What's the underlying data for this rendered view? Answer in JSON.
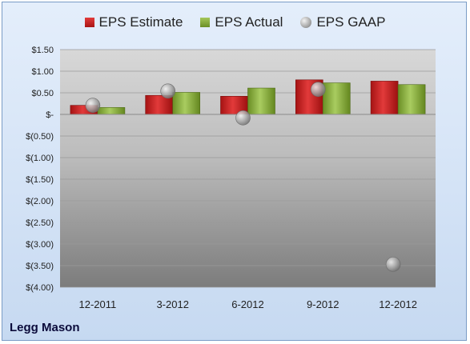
{
  "company": "Legg Mason",
  "legend": {
    "estimate": "EPS Estimate",
    "actual": "EPS Actual",
    "gaap": "EPS GAAP"
  },
  "chart_data": {
    "type": "bar",
    "title": "",
    "xlabel": "",
    "ylabel": "",
    "categories": [
      "12-2011",
      "3-2012",
      "6-2012",
      "9-2012",
      "12-2012"
    ],
    "series": [
      {
        "name": "EPS Estimate",
        "kind": "bar",
        "color": "#c0201f",
        "values": [
          0.21,
          0.44,
          0.42,
          0.8,
          0.77
        ]
      },
      {
        "name": "EPS Actual",
        "kind": "bar",
        "color": "#86ad3a",
        "values": [
          0.16,
          0.51,
          0.61,
          0.73,
          0.69
        ]
      },
      {
        "name": "EPS GAAP",
        "kind": "scatter",
        "color": "#a8a8a8",
        "values": [
          0.21,
          0.54,
          -0.08,
          0.58,
          -3.47
        ]
      }
    ],
    "ylim": [
      -4.0,
      1.5
    ],
    "yticks": [
      1.5,
      1.0,
      0.5,
      0,
      -0.5,
      -1.0,
      -1.5,
      -2.0,
      -2.5,
      -3.0,
      -3.5,
      -4.0
    ],
    "ytick_labels": [
      "$1.50",
      "$1.00",
      "$0.50",
      "$-",
      "$(0.50)",
      "$(1.00)",
      "$(1.50)",
      "$(2.00)",
      "$(2.50)",
      "$(3.00)",
      "$(3.50)",
      "$(4.00)"
    ],
    "grid": true,
    "legend_position": "top"
  }
}
